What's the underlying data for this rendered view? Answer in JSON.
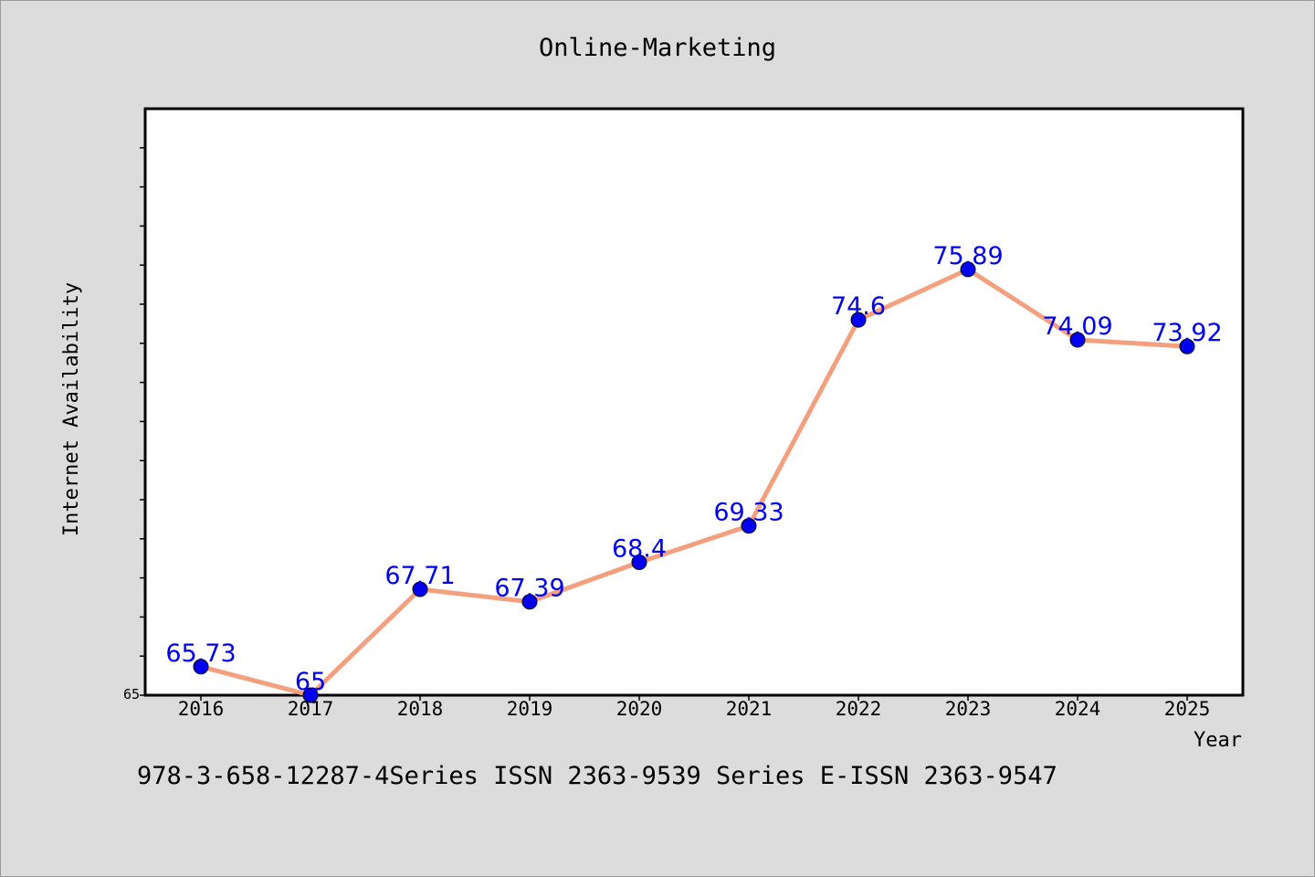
{
  "chart_data": {
    "type": "line",
    "title": "Online-Marketing",
    "xlabel": "Year",
    "ylabel": "Internet Availability",
    "categories": [
      "2016",
      "2017",
      "2018",
      "2019",
      "2020",
      "2021",
      "2022",
      "2023",
      "2024",
      "2025"
    ],
    "series": [
      {
        "values": [
          65.73,
          65,
          67.71,
          67.39,
          68.4,
          69.33,
          74.6,
          75.89,
          74.09,
          73.92
        ],
        "labels": [
          "65.73",
          "65",
          "67.71",
          "67.39",
          "68.4",
          "69.33",
          "74.6",
          "75.89",
          "74.09",
          "73.92"
        ],
        "line_color": "#f4a07e",
        "marker_color": "#0000ee",
        "label_color": "#0000ee"
      }
    ],
    "ylim": [
      65,
      80
    ],
    "y_tick_labels": [
      "65"
    ],
    "grid": false,
    "legend": "none"
  },
  "footer": "978-3-658-12287-4Series ISSN 2363-9539 Series E-ISSN 2363-9547"
}
